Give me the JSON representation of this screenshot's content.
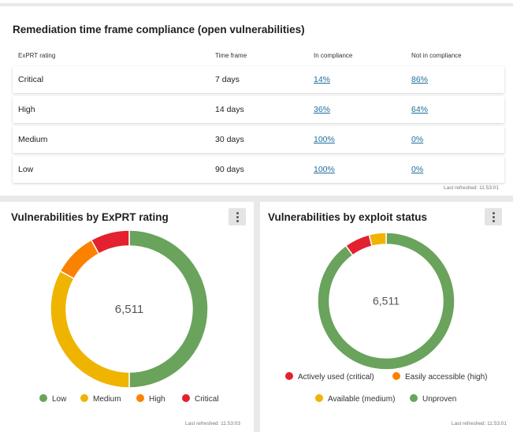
{
  "compliance": {
    "title": "Remediation time frame compliance (open vulnerabilities)",
    "headers": [
      "ExPRT rating",
      "Time frame",
      "In compliance",
      "Not in compliance"
    ],
    "rows": [
      {
        "rating": "Critical",
        "time_frame": "7 days",
        "in_compliance": "14%",
        "not_in_compliance": "86%"
      },
      {
        "rating": "High",
        "time_frame": "14 days",
        "in_compliance": "36%",
        "not_in_compliance": "64%"
      },
      {
        "rating": "Medium",
        "time_frame": "30 days",
        "in_compliance": "100%",
        "not_in_compliance": "0%"
      },
      {
        "rating": "Low",
        "time_frame": "90 days",
        "in_compliance": "100%",
        "not_in_compliance": "0%"
      }
    ],
    "last_refreshed": "Last refreshed: 11:53:01"
  },
  "expert_card": {
    "title": "Vulnerabilities by ExPRT rating",
    "last_refreshed": "Last refreshed: 11:53:03"
  },
  "exploit_card": {
    "title": "Vulnerabilities by exploit status",
    "last_refreshed": "Last refreshed: 11:53:01"
  },
  "chart_data": [
    {
      "type": "pie",
      "center_label": "6,511",
      "categories": [
        "Low",
        "Medium",
        "High",
        "Critical"
      ],
      "values": [
        50,
        33,
        9,
        8
      ],
      "colors": [
        "#69a35c",
        "#efb400",
        "#fb8100",
        "#e3212f"
      ],
      "legend": [
        "Low",
        "Medium",
        "High",
        "Critical"
      ],
      "legend_position": "bottom"
    },
    {
      "type": "pie",
      "center_label": "6,511",
      "categories": [
        "Unproven",
        "Actively used (critical)",
        "Available (medium)"
      ],
      "values": [
        90,
        6,
        4
      ],
      "colors": [
        "#69a35c",
        "#e3212f",
        "#efb400"
      ],
      "legend": [
        {
          "label": "Actively used (critical)",
          "color": "#e3212f"
        },
        {
          "label": "Easily accessible (high)",
          "color": "#fb8100"
        },
        {
          "label": "Available (medium)",
          "color": "#efb400"
        },
        {
          "label": "Unproven",
          "color": "#69a35c"
        }
      ],
      "legend_position": "bottom"
    }
  ]
}
